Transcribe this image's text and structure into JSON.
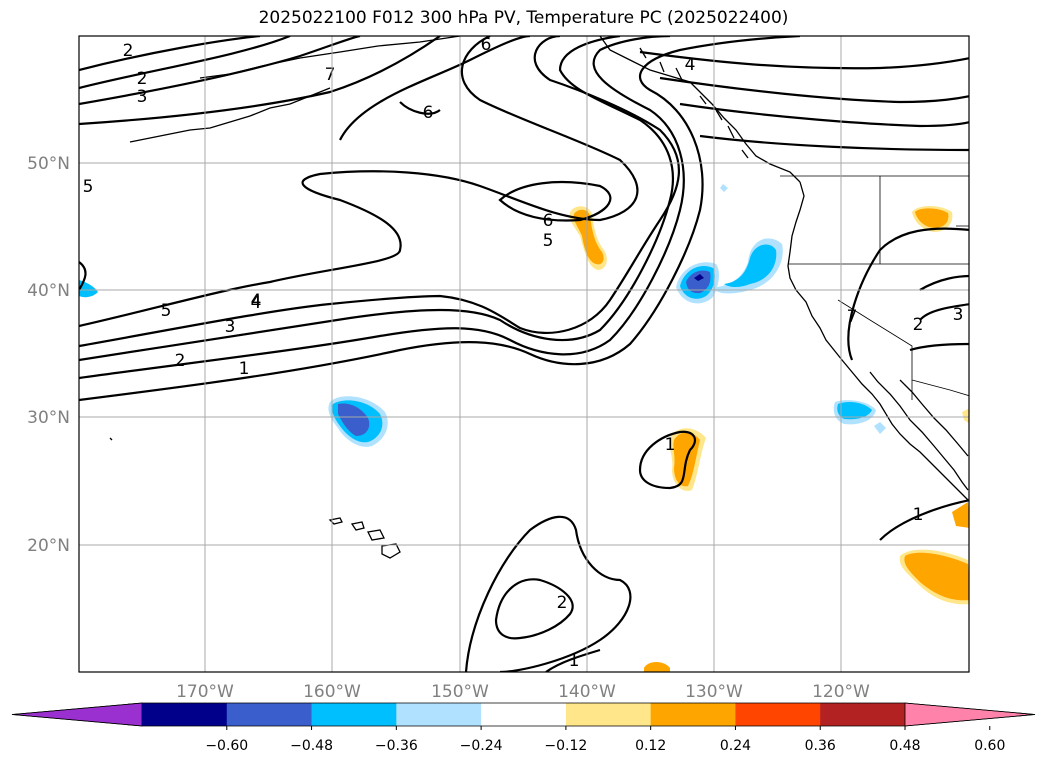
{
  "title": "2025022100 F012 300 hPa PV, Temperature PC (2025022400)",
  "lat_labels": [
    "50°N",
    "40°N",
    "30°N",
    "20°N"
  ],
  "lon_labels": [
    "170°W",
    "160°W",
    "150°W",
    "140°W",
    "130°W",
    "120°W"
  ],
  "contour_labels": [
    "2",
    "2",
    "3",
    "5",
    "6",
    "7",
    "4",
    "6",
    "6",
    "5",
    "4",
    "1",
    "7",
    "2",
    "3",
    "5",
    "4",
    "3",
    "2",
    "1",
    "1",
    "1",
    "2",
    "1"
  ],
  "colorbar": {
    "ticks": [
      "−0.60",
      "−0.48",
      "−0.36",
      "−0.24",
      "−0.12",
      "0.12",
      "0.24",
      "0.36",
      "0.48",
      "0.60"
    ],
    "colors": [
      "#9b30d0",
      "#00008b",
      "#3a5fcd",
      "#00bfff",
      "#b0e2ff",
      "#ffffff",
      "#ffe68a",
      "#ffa500",
      "#ff4500",
      "#b22222",
      "#ff82ab"
    ]
  }
}
